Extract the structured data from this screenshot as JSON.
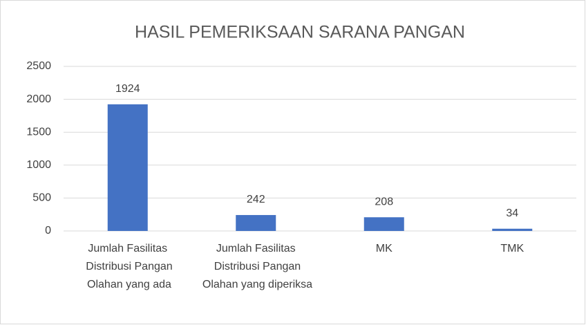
{
  "chart_data": {
    "type": "bar",
    "title": "HASIL PEMERIKSAAN SARANA PANGAN",
    "categories": [
      "Jumlah Fasilitas Distribusi Pangan Olahan yang ada",
      "Jumlah Fasilitas Distribusi Pangan Olahan yang diperiksa",
      "MK",
      "TMK"
    ],
    "values": [
      1924,
      242,
      208,
      34
    ],
    "color": "#4472c4",
    "ylim": [
      0,
      2500
    ],
    "yticks": [
      0,
      500,
      1000,
      1500,
      2000,
      2500
    ],
    "grid": true
  }
}
